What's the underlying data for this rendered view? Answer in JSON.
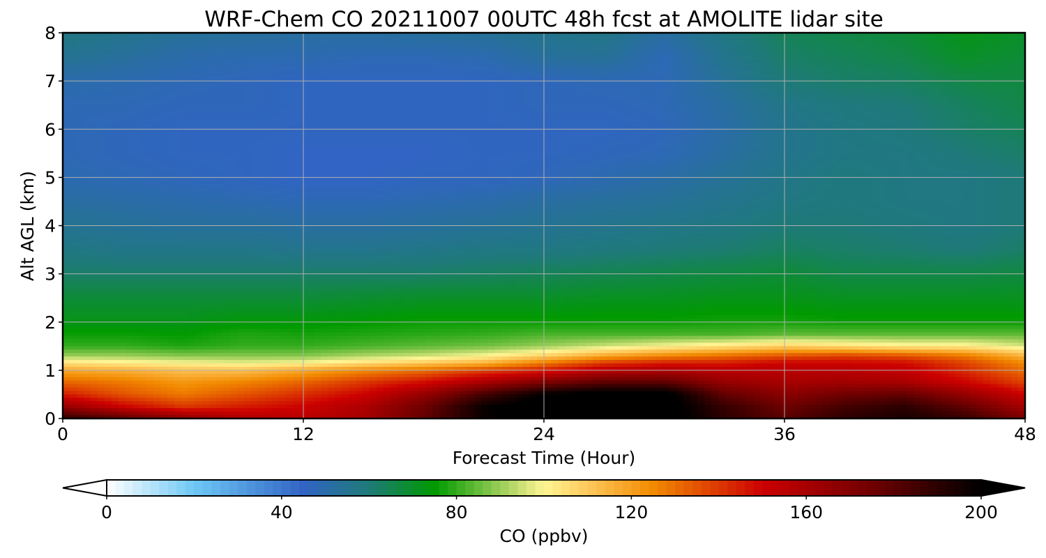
{
  "chart_data": {
    "type": "heatmap",
    "title": "WRF-Chem CO  20211007 00UTC 48h fcst at AMOLITE lidar site",
    "xlabel": "Forecast Time (Hour)",
    "ylabel": "Alt AGL (km)",
    "xlim": [
      0,
      48
    ],
    "ylim": [
      0,
      8
    ],
    "xticks": [
      0,
      12,
      24,
      36,
      48
    ],
    "yticks": [
      0,
      1,
      2,
      3,
      4,
      5,
      6,
      7,
      8
    ],
    "grid": true,
    "x": [
      0,
      3,
      6,
      9,
      12,
      15,
      18,
      21,
      24,
      27,
      30,
      33,
      36,
      39,
      42,
      45,
      48
    ],
    "y": [
      0.0,
      0.25,
      0.5,
      0.75,
      1.0,
      1.15,
      1.3,
      1.5,
      1.75,
      2.0,
      2.5,
      3.0,
      3.5,
      4.0,
      4.5,
      5.0,
      5.5,
      6.0,
      6.5,
      7.0,
      7.5,
      8.0
    ],
    "z": [
      [
        190,
        180,
        168,
        158,
        155,
        160,
        178,
        198,
        205,
        205,
        205,
        190,
        180,
        190,
        195,
        188,
        172
      ],
      [
        165,
        150,
        140,
        145,
        150,
        158,
        175,
        198,
        205,
        205,
        205,
        188,
        175,
        185,
        190,
        178,
        160
      ],
      [
        145,
        135,
        128,
        135,
        142,
        150,
        165,
        185,
        200,
        205,
        205,
        178,
        168,
        175,
        178,
        165,
        150
      ],
      [
        132,
        128,
        122,
        126,
        132,
        140,
        148,
        160,
        172,
        180,
        180,
        165,
        160,
        162,
        160,
        150,
        138
      ],
      [
        118,
        116,
        112,
        112,
        118,
        125,
        130,
        138,
        145,
        155,
        158,
        155,
        155,
        155,
        152,
        142,
        130
      ],
      [
        105,
        102,
        100,
        98,
        100,
        105,
        110,
        115,
        128,
        140,
        145,
        145,
        150,
        150,
        148,
        138,
        125
      ],
      [
        90,
        90,
        88,
        88,
        88,
        92,
        95,
        100,
        108,
        118,
        125,
        130,
        135,
        138,
        135,
        128,
        115
      ],
      [
        80,
        80,
        78,
        80,
        80,
        82,
        84,
        86,
        90,
        95,
        100,
        104,
        108,
        105,
        102,
        102,
        96
      ],
      [
        76,
        76,
        75,
        78,
        77,
        78,
        79,
        80,
        82,
        82,
        82,
        82,
        84,
        84,
        84,
        84,
        84
      ],
      [
        72,
        72,
        72,
        74,
        74,
        75,
        76,
        76,
        76,
        76,
        76,
        77,
        77,
        76,
        76,
        76,
        76
      ],
      [
        68,
        68,
        68,
        68,
        68,
        69,
        70,
        70,
        70,
        71,
        71,
        72,
        72,
        71,
        71,
        71,
        71
      ],
      [
        62,
        62,
        62,
        62,
        62,
        62,
        62,
        63,
        64,
        65,
        66,
        67,
        68,
        66,
        66,
        66,
        67
      ],
      [
        58,
        57,
        57,
        57,
        56,
        56,
        57,
        58,
        58,
        59,
        60,
        61,
        63,
        62,
        61,
        60,
        62
      ],
      [
        55,
        54,
        53,
        53,
        52,
        52,
        53,
        54,
        55,
        56,
        57,
        58,
        60,
        60,
        59,
        58,
        60
      ],
      [
        52,
        51,
        50,
        49,
        48,
        48,
        49,
        50,
        52,
        53,
        54,
        56,
        58,
        59,
        58,
        58,
        60
      ],
      [
        49,
        48,
        47,
        46,
        45,
        45,
        46,
        46,
        47,
        49,
        51,
        54,
        57,
        59,
        58,
        58,
        60
      ],
      [
        48,
        47,
        46,
        46,
        45,
        45,
        45,
        46,
        46,
        47,
        48,
        52,
        56,
        58,
        58,
        60,
        62
      ],
      [
        48,
        47,
        46,
        46,
        46,
        46,
        46,
        46,
        46,
        46,
        47,
        51,
        56,
        58,
        59,
        62,
        64
      ],
      [
        48,
        48,
        47,
        47,
        46,
        46,
        46,
        46,
        47,
        47,
        48,
        52,
        57,
        59,
        60,
        63,
        66
      ],
      [
        50,
        49,
        48,
        47,
        46,
        46,
        46,
        46,
        47,
        48,
        48,
        54,
        60,
        62,
        63,
        66,
        67
      ],
      [
        55,
        53,
        50,
        49,
        49,
        48,
        48,
        49,
        53,
        54,
        48,
        56,
        62,
        64,
        66,
        70,
        68
      ],
      [
        58,
        56,
        54,
        53,
        52,
        52,
        53,
        54,
        56,
        57,
        52,
        58,
        64,
        66,
        68,
        72,
        70
      ]
    ]
  },
  "colorbar": {
    "label": "CO  (ppbv)",
    "min": 0,
    "max": 200,
    "ticks": [
      0,
      40,
      80,
      120,
      160,
      200
    ],
    "extend": "both",
    "stops": [
      {
        "v": 0,
        "c": "#ffffff"
      },
      {
        "v": 20,
        "c": "#6ec8f6"
      },
      {
        "v": 45,
        "c": "#3164c4"
      },
      {
        "v": 60,
        "c": "#1e7a78"
      },
      {
        "v": 75,
        "c": "#009a00"
      },
      {
        "v": 90,
        "c": "#9acd58"
      },
      {
        "v": 100,
        "c": "#fff594"
      },
      {
        "v": 112,
        "c": "#fdc050"
      },
      {
        "v": 125,
        "c": "#f28a00"
      },
      {
        "v": 150,
        "c": "#cc0000"
      },
      {
        "v": 175,
        "c": "#700000"
      },
      {
        "v": 200,
        "c": "#000000"
      }
    ]
  }
}
